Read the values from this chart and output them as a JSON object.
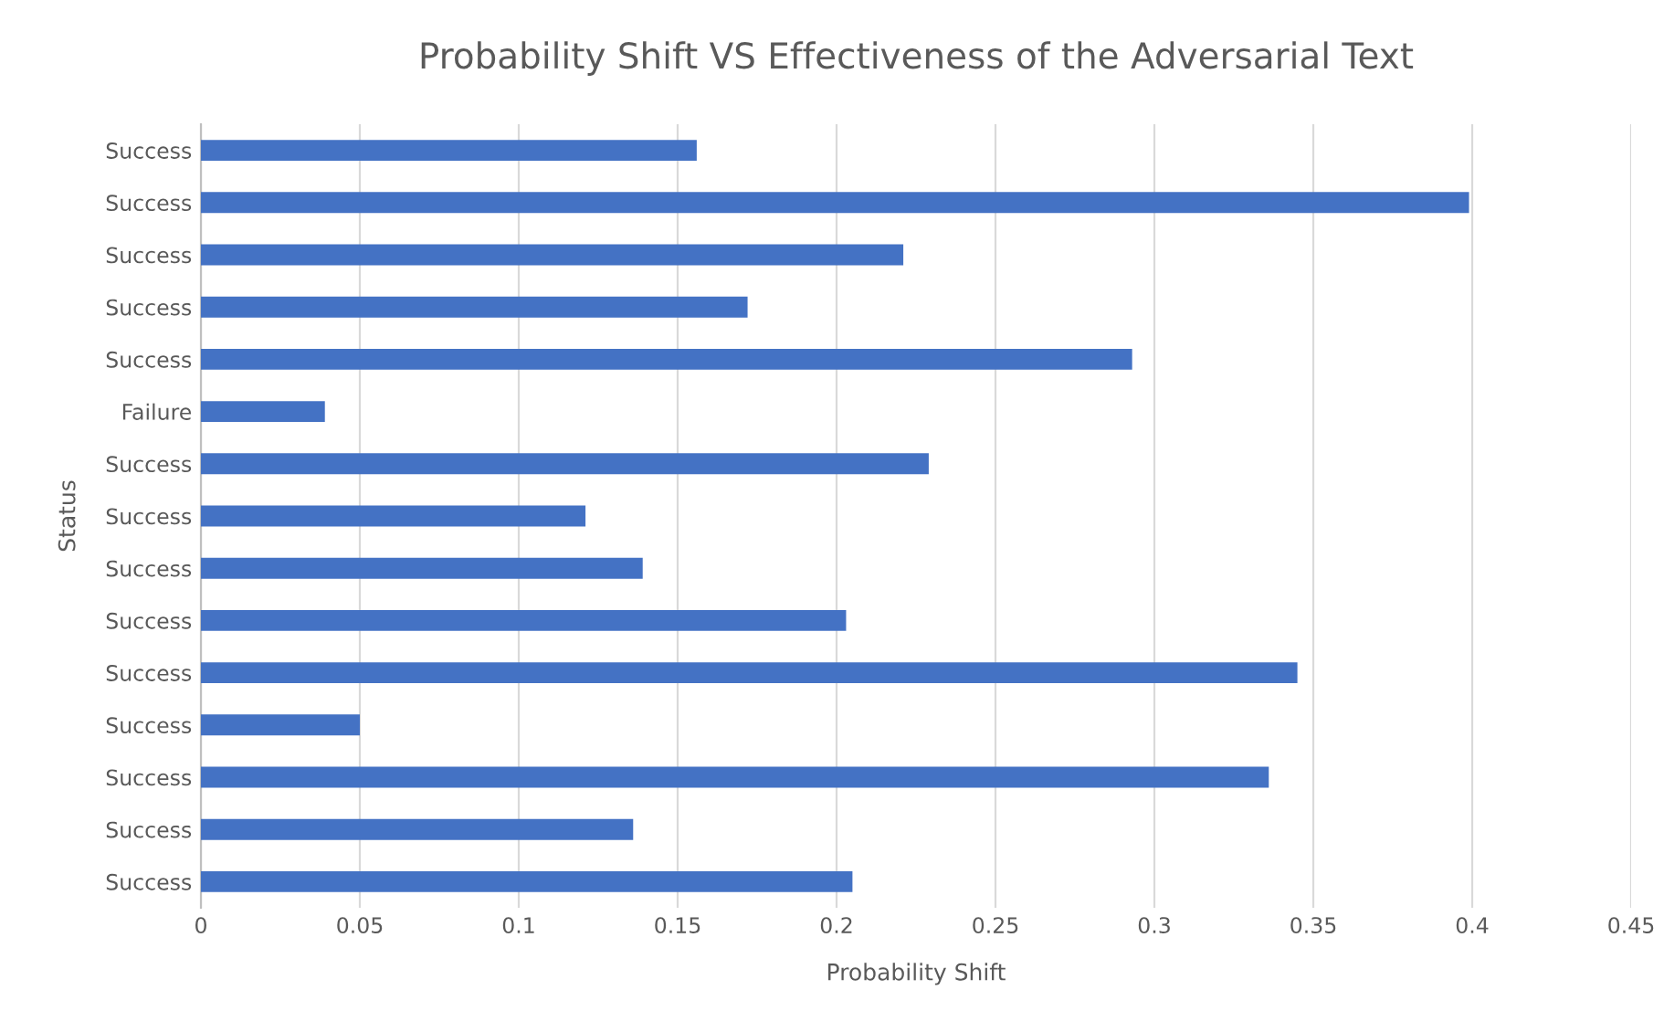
{
  "chart_data": {
    "type": "bar",
    "orientation": "horizontal",
    "title": "Probability Shift VS Effectiveness of the Adversarial Text",
    "xlabel": "Probability Shift",
    "ylabel": "Status",
    "categories": [
      "Success",
      "Success",
      "Success",
      "Success",
      "Success",
      "Failure",
      "Success",
      "Success",
      "Success",
      "Success",
      "Success",
      "Success",
      "Success",
      "Success",
      "Success"
    ],
    "values": [
      0.156,
      0.399,
      0.221,
      0.172,
      0.293,
      0.039,
      0.229,
      0.121,
      0.139,
      0.203,
      0.345,
      0.05,
      0.336,
      0.136,
      0.205
    ],
    "color": "#4472c4",
    "xlim": [
      0,
      0.45
    ],
    "xticks": [
      0,
      0.05,
      0.1,
      0.15,
      0.2,
      0.25,
      0.3,
      0.35,
      0.4,
      0.45
    ],
    "grid": "x",
    "legend": false
  }
}
